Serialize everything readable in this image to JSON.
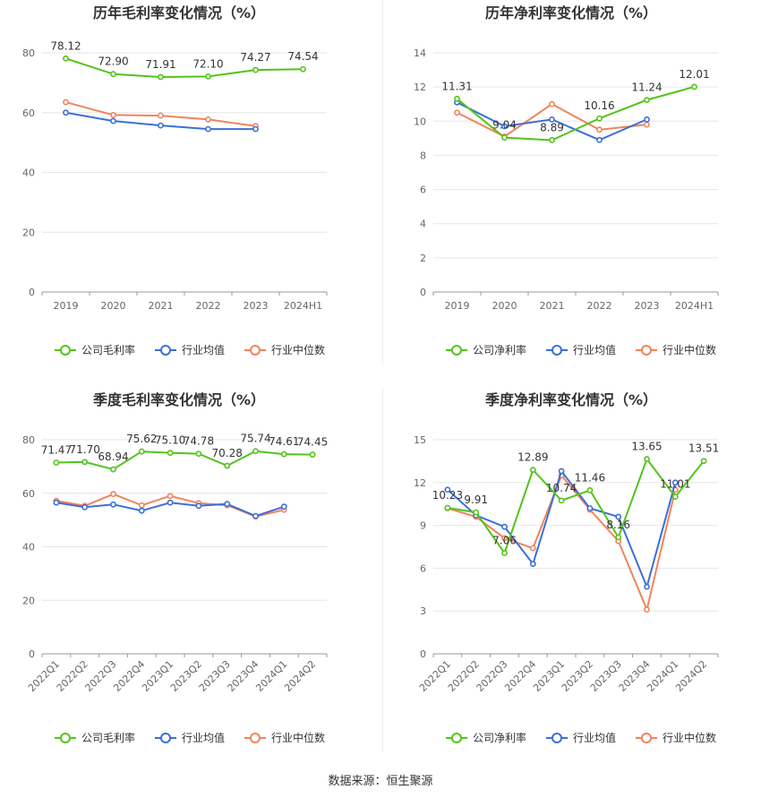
{
  "source": "数据来源：恒生聚源",
  "colors": {
    "company": "#52c41a",
    "avg": "#3b6fd8",
    "median": "#f0845c",
    "grid": "#e6e6e6",
    "axis": "#666666",
    "title": "#333333"
  },
  "chart_data": [
    {
      "type": "line",
      "title": "历年毛利率变化情况（%）",
      "categories": [
        "2019",
        "2020",
        "2021",
        "2022",
        "2023",
        "2024H1"
      ],
      "ylim": [
        0,
        80
      ],
      "yticks": [
        "0",
        "20",
        "40",
        "60",
        "80"
      ],
      "series": [
        {
          "name": "公司毛利率",
          "key": "company",
          "values": [
            78.12,
            72.9,
            71.91,
            72.1,
            74.27,
            74.54
          ],
          "labels": [
            "78.12",
            "72.90",
            "71.91",
            "72.10",
            "74.27",
            "74.54"
          ]
        },
        {
          "name": "行业均值",
          "key": "avg",
          "values": [
            60.0,
            57.2,
            55.7,
            54.5,
            54.5,
            null
          ]
        },
        {
          "name": "行业中位数",
          "key": "median",
          "values": [
            63.5,
            59.2,
            59.0,
            57.7,
            55.5,
            null
          ]
        }
      ],
      "legend": "bottom",
      "grid": true
    },
    {
      "type": "line",
      "title": "历年净利率变化情况（%）",
      "categories": [
        "2019",
        "2020",
        "2021",
        "2022",
        "2023",
        "2024H1"
      ],
      "ylim": [
        0,
        14
      ],
      "yticks": [
        "0",
        "2",
        "4",
        "6",
        "8",
        "10",
        "12",
        "14"
      ],
      "series": [
        {
          "name": "公司净利率",
          "key": "company",
          "values": [
            11.31,
            9.04,
            8.89,
            10.16,
            11.24,
            12.01
          ],
          "labels": [
            "11.31",
            "9.04",
            "8.89",
            "10.16",
            "11.24",
            "12.01"
          ]
        },
        {
          "name": "行业均值",
          "key": "avg",
          "values": [
            11.1,
            9.7,
            10.1,
            8.9,
            10.1,
            null
          ]
        },
        {
          "name": "行业中位数",
          "key": "median",
          "values": [
            10.5,
            9.1,
            11.0,
            9.5,
            9.8,
            null
          ]
        }
      ],
      "legend": "bottom",
      "grid": true
    },
    {
      "type": "line",
      "title": "季度毛利率变化情况（%）",
      "categories": [
        "2022Q1",
        "2022Q2",
        "2022Q3",
        "2022Q4",
        "2023Q1",
        "2023Q2",
        "2023Q3",
        "2023Q4",
        "2024Q1",
        "2024Q2"
      ],
      "ylim": [
        0,
        80
      ],
      "yticks": [
        "0",
        "20",
        "40",
        "60",
        "80"
      ],
      "series": [
        {
          "name": "公司毛利率",
          "key": "company",
          "values": [
            71.47,
            71.7,
            68.94,
            75.62,
            75.1,
            74.78,
            70.28,
            75.74,
            74.61,
            74.45
          ],
          "labels": [
            "71.47",
            "71.70",
            "68.94",
            "75.62",
            "75.10",
            "74.78",
            "70.28",
            "75.74",
            "74.61",
            "74.45"
          ]
        },
        {
          "name": "行业均值",
          "key": "avg",
          "values": [
            56.5,
            54.8,
            55.8,
            53.5,
            56.5,
            55.3,
            56.0,
            51.5,
            55.0,
            null
          ]
        },
        {
          "name": "行业中位数",
          "key": "median",
          "values": [
            57.2,
            55.3,
            59.7,
            55.5,
            59.0,
            56.3,
            55.5,
            51.3,
            53.8,
            null
          ]
        }
      ],
      "legend": "bottom",
      "grid": true
    },
    {
      "type": "line",
      "title": "季度净利率变化情况（%）",
      "categories": [
        "2022Q1",
        "2022Q2",
        "2022Q3",
        "2022Q4",
        "2023Q1",
        "2023Q2",
        "2023Q3",
        "2023Q4",
        "2024Q1",
        "2024Q2"
      ],
      "ylim": [
        0,
        15
      ],
      "yticks": [
        "0",
        "3",
        "6",
        "9",
        "12",
        "15"
      ],
      "series": [
        {
          "name": "公司净利率",
          "key": "company",
          "values": [
            10.23,
            9.91,
            7.06,
            12.89,
            10.74,
            11.46,
            8.16,
            13.65,
            11.01,
            13.51
          ],
          "labels": [
            "10.23",
            "9.91",
            "7.06",
            "12.89",
            "10.74",
            "11.46",
            "8.16",
            "13.65",
            "11.01",
            "13.51"
          ]
        },
        {
          "name": "行业均值",
          "key": "avg",
          "values": [
            11.5,
            9.7,
            8.9,
            6.3,
            12.8,
            10.2,
            9.6,
            4.7,
            12.0,
            null
          ]
        },
        {
          "name": "行业中位数",
          "key": "median",
          "values": [
            10.2,
            9.6,
            8.1,
            7.4,
            12.5,
            10.1,
            7.9,
            3.1,
            11.5,
            null
          ]
        }
      ],
      "legend": "bottom",
      "grid": true
    }
  ]
}
